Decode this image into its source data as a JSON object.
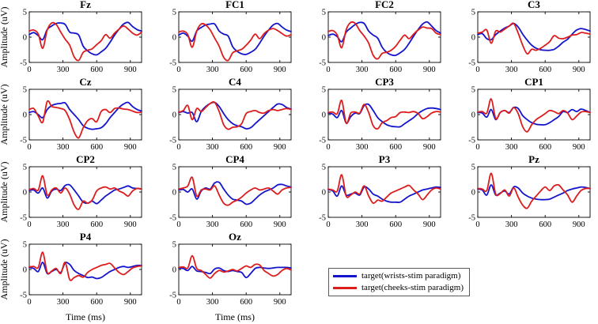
{
  "legend": {
    "items": [
      {
        "label": "target(wrists-stim paradigm)",
        "color": "#1414cc"
      },
      {
        "label": "target(cheeks-stim paradigm)",
        "color": "#dd1c1c"
      }
    ]
  },
  "chart_data": {
    "type": "line",
    "title": "",
    "xlabel": "Time (ms)",
    "ylabel": "Amplitude (uV)",
    "xlim": [
      0,
      1000
    ],
    "ylim": [
      -5,
      5
    ],
    "xticks": [
      0,
      300,
      600,
      900
    ],
    "yticks": [
      5,
      0,
      -5
    ],
    "grid": false,
    "legend_position": "bottom-right",
    "x": [
      0,
      40,
      80,
      120,
      160,
      200,
      240,
      280,
      320,
      360,
      400,
      440,
      480,
      520,
      560,
      600,
      640,
      680,
      720,
      760,
      800,
      840,
      880,
      920,
      960,
      1000
    ],
    "series_meta": [
      {
        "name": "target(wrists-stim paradigm)",
        "color": "#1414cc"
      },
      {
        "name": "target(cheeks-stim paradigm)",
        "color": "#dd1c1c"
      }
    ],
    "charts": [
      {
        "title": "Fz",
        "series": [
          [
            0.5,
            0.9,
            0.3,
            -0.5,
            1.5,
            2.2,
            2.7,
            2.8,
            2.5,
            1.0,
            0.8,
            0.4,
            -1.8,
            -2.7,
            -3.3,
            -3.5,
            -2.9,
            -2.2,
            -1.0,
            0.4,
            1.6,
            2.6,
            2.9,
            2.1,
            1.5,
            1.2
          ],
          [
            1.2,
            1.4,
            0.6,
            -2.2,
            1.4,
            2.8,
            2.5,
            1.0,
            -0.4,
            -1.6,
            -3.9,
            -4.6,
            -3.0,
            -2.6,
            -2.3,
            -1.5,
            -0.7,
            0.5,
            -0.2,
            0.8,
            1.6,
            2.2,
            1.6,
            0.8,
            0.4,
            1.0
          ]
        ]
      },
      {
        "title": "FC1",
        "series": [
          [
            0.4,
            0.8,
            0.2,
            -0.8,
            1.2,
            1.9,
            2.4,
            2.6,
            2.6,
            1.2,
            0.6,
            0.2,
            -1.9,
            -2.8,
            -3.3,
            -3.4,
            -3.0,
            -2.4,
            -1.2,
            0.2,
            1.4,
            2.4,
            2.7,
            2.0,
            1.4,
            1.1
          ],
          [
            1.0,
            1.2,
            0.5,
            -2.0,
            1.2,
            2.6,
            2.4,
            1.4,
            -0.2,
            -1.8,
            -4.0,
            -4.6,
            -3.1,
            -2.7,
            -2.4,
            -1.6,
            -0.6,
            0.6,
            -0.3,
            0.7,
            1.4,
            1.7,
            1.3,
            0.7,
            0.2,
            0.5
          ]
        ]
      },
      {
        "title": "FC2",
        "series": [
          [
            0.3,
            0.6,
            0.1,
            -0.9,
            1.0,
            1.8,
            2.5,
            2.9,
            2.7,
            1.2,
            0.4,
            -0.2,
            -2.0,
            -3.0,
            -3.5,
            -3.6,
            -3.1,
            -2.4,
            -1.2,
            0.2,
            1.5,
            2.6,
            3.0,
            2.2,
            1.3,
            0.8
          ],
          [
            1.1,
            1.3,
            0.4,
            -2.1,
            1.5,
            2.9,
            2.7,
            1.3,
            0.2,
            -1.2,
            -3.6,
            -4.3,
            -3.2,
            -3.0,
            -2.6,
            -1.8,
            -0.6,
            0.4,
            -0.3,
            0.6,
            1.4,
            2.0,
            1.8,
            1.7,
            0.8,
            0.5
          ]
        ]
      },
      {
        "title": "C3",
        "series": [
          [
            0.5,
            0.7,
            -0.3,
            -0.5,
            0.5,
            1.2,
            1.8,
            2.2,
            2.7,
            2.0,
            0.6,
            -0.6,
            -1.6,
            -2.2,
            -2.5,
            -2.6,
            -2.6,
            -2.4,
            -1.8,
            -1.0,
            -0.4,
            0.6,
            1.4,
            1.7,
            1.5,
            1.2
          ],
          [
            0.8,
            1.0,
            1.4,
            -1.2,
            1.2,
            1.0,
            1.6,
            2.2,
            2.7,
            0.8,
            -1.6,
            -3.3,
            -2.4,
            -2.6,
            -2.2,
            -1.6,
            -0.9,
            0.3,
            -0.2,
            -0.3,
            0.0,
            0.4,
            0.5,
            0.9,
            0.8,
            0.6
          ]
        ]
      },
      {
        "title": "Cz",
        "series": [
          [
            0.4,
            0.6,
            0.0,
            -0.6,
            1.0,
            1.8,
            2.1,
            2.2,
            2.3,
            1.0,
            0.0,
            -1.0,
            -2.2,
            -2.7,
            -2.9,
            -2.8,
            -2.6,
            -1.8,
            -0.6,
            0.4,
            1.4,
            2.1,
            2.4,
            1.6,
            1.0,
            0.7
          ],
          [
            1.0,
            1.2,
            -0.3,
            -1.5,
            2.6,
            1.6,
            1.4,
            1.2,
            0.8,
            -1.0,
            -3.5,
            -4.6,
            -2.6,
            -1.2,
            -0.8,
            -1.4,
            0.6,
            1.0,
            0.4,
            1.2,
            1.3,
            1.1,
            1.0,
            0.7,
            0.4,
            0.5
          ]
        ]
      },
      {
        "title": "C4",
        "series": [
          [
            0.4,
            0.6,
            0.3,
            0.4,
            -1.4,
            0.6,
            1.6,
            2.2,
            2.4,
            1.6,
            0.2,
            -1.0,
            -1.8,
            -2.2,
            -2.4,
            -2.8,
            -2.6,
            -1.8,
            -1.0,
            -0.2,
            0.6,
            1.4,
            2.1,
            2.0,
            1.4,
            1.1
          ],
          [
            0.5,
            0.8,
            1.8,
            -1.0,
            1.2,
            0.6,
            1.4,
            2.2,
            2.4,
            0.6,
            -2.0,
            -2.9,
            -2.5,
            -2.4,
            -1.8,
            0.2,
            0.6,
            0.8,
            0.4,
            0.3,
            0.8,
            1.0,
            0.8,
            1.0,
            1.2,
            1.0
          ]
        ]
      },
      {
        "title": "CP3",
        "series": [
          [
            0.3,
            0.1,
            -0.6,
            0.8,
            -1.7,
            -0.4,
            0.3,
            0.2,
            1.8,
            2.0,
            0.8,
            -0.6,
            -1.4,
            -2.0,
            -2.3,
            -2.4,
            -2.4,
            -1.8,
            -1.2,
            -0.6,
            0.2,
            0.8,
            1.2,
            1.3,
            1.2,
            1.0
          ],
          [
            0.4,
            0.5,
            0.2,
            2.8,
            -1.7,
            0.3,
            0.5,
            0.3,
            2.0,
            0.4,
            -2.2,
            -2.8,
            -1.6,
            -1.2,
            -0.6,
            -0.4,
            0.4,
            0.5,
            0.4,
            0.6,
            0.2,
            -0.8,
            -0.4,
            0.3,
            0.6,
            0.5
          ]
        ]
      },
      {
        "title": "CP1",
        "series": [
          [
            0.4,
            0.3,
            -0.5,
            1.0,
            -1.0,
            0.4,
            0.8,
            0.4,
            1.4,
            1.2,
            -0.2,
            -1.0,
            -1.6,
            -1.9,
            -2.0,
            -2.0,
            -1.6,
            -1.0,
            -0.4,
            0.6,
            0.4,
            1.0,
            0.6,
            1.1,
            0.8,
            0.4
          ],
          [
            0.5,
            0.6,
            0.3,
            3.1,
            -0.8,
            0.4,
            0.8,
            0.3,
            1.4,
            0.2,
            -2.4,
            -3.4,
            -2.0,
            -1.0,
            -0.4,
            0.2,
            0.8,
            0.6,
            0.2,
            0.8,
            0.3,
            -1.0,
            -0.3,
            0.5,
            0.6,
            0.4
          ]
        ]
      },
      {
        "title": "CP2",
        "series": [
          [
            0.3,
            0.4,
            -0.2,
            0.8,
            -1.2,
            0.2,
            0.6,
            0.3,
            1.3,
            1.4,
            0.4,
            -0.8,
            -2.0,
            -2.2,
            -1.8,
            -2.3,
            -1.6,
            -0.8,
            -0.2,
            0.4,
            0.6,
            0.9,
            1.2,
            0.8,
            0.7,
            0.6
          ],
          [
            0.5,
            0.7,
            0.4,
            3.2,
            -0.6,
            0.4,
            0.8,
            -0.2,
            0.8,
            -0.4,
            -2.6,
            -3.4,
            -1.8,
            -2.2,
            -1.6,
            0.2,
            0.8,
            1.0,
            0.6,
            0.8,
            0.2,
            -0.2,
            -0.8,
            0.2,
            0.7,
            0.6
          ]
        ]
      },
      {
        "title": "CP4",
        "series": [
          [
            0.4,
            0.5,
            0.0,
            0.6,
            -1.4,
            0.2,
            0.8,
            0.6,
            1.8,
            1.9,
            0.6,
            -0.6,
            -1.4,
            -1.6,
            -1.8,
            -2.4,
            -2.2,
            -1.4,
            -0.6,
            0.0,
            0.4,
            0.8,
            1.4,
            1.5,
            1.2,
            1.0
          ],
          [
            0.6,
            0.8,
            1.2,
            2.9,
            -0.8,
            0.4,
            0.6,
            0.4,
            1.2,
            -0.6,
            -2.2,
            -2.6,
            -2.0,
            -1.6,
            -1.0,
            -0.2,
            0.4,
            0.8,
            0.4,
            0.6,
            0.8,
            0.2,
            -0.4,
            0.4,
            0.8,
            0.9
          ]
        ]
      },
      {
        "title": "P3",
        "series": [
          [
            0.5,
            0.2,
            -0.8,
            1.2,
            -0.6,
            -0.4,
            -0.2,
            -0.6,
            1.0,
            0.6,
            -0.4,
            -0.8,
            -1.4,
            -1.8,
            -2.0,
            -2.0,
            -2.0,
            -1.4,
            -0.8,
            -0.4,
            0.0,
            0.4,
            0.6,
            0.8,
            1.0,
            0.9
          ],
          [
            0.6,
            0.4,
            0.2,
            3.4,
            -0.8,
            -0.6,
            0.0,
            -0.4,
            1.2,
            -0.8,
            -2.2,
            -1.6,
            -1.8,
            -1.0,
            -0.2,
            0.2,
            0.6,
            1.0,
            1.3,
            0.4,
            -0.4,
            -1.5,
            -0.6,
            0.4,
            0.8,
            0.6
          ]
        ]
      },
      {
        "title": "Pz",
        "series": [
          [
            0.6,
            0.4,
            -0.6,
            1.4,
            -0.6,
            -0.2,
            0.2,
            -0.4,
            1.0,
            0.8,
            -0.2,
            -0.8,
            -1.2,
            -1.4,
            -1.5,
            -1.5,
            -1.4,
            -1.0,
            -0.6,
            -0.2,
            0.3,
            0.6,
            0.8,
            1.0,
            0.9,
            0.7
          ],
          [
            0.7,
            0.6,
            0.3,
            3.7,
            -0.4,
            -0.3,
            0.4,
            -0.8,
            0.8,
            -1.0,
            -2.6,
            -3.2,
            -1.8,
            -0.8,
            0.2,
            1.0,
            0.3,
            1.2,
            1.4,
            0.4,
            -0.6,
            -2.0,
            -0.8,
            0.3,
            0.7,
            0.7
          ]
        ]
      },
      {
        "title": "P4",
        "series": [
          [
            0.4,
            0.2,
            -0.4,
            1.4,
            -0.8,
            -0.4,
            0.0,
            -0.6,
            1.3,
            1.0,
            -0.2,
            -0.8,
            -1.2,
            -1.6,
            -1.5,
            -1.8,
            -1.6,
            -1.0,
            -0.4,
            0.0,
            0.4,
            0.6,
            0.4,
            0.6,
            0.8,
            0.8
          ],
          [
            0.5,
            0.6,
            0.4,
            3.4,
            -0.6,
            -0.3,
            0.2,
            -0.8,
            1.4,
            -2.0,
            -1.6,
            -1.2,
            -1.5,
            -0.6,
            0.0,
            0.4,
            0.8,
            1.0,
            1.2,
            0.3,
            -0.6,
            -1.0,
            -0.4,
            0.3,
            0.6,
            0.7
          ]
        ]
      },
      {
        "title": "Oz",
        "series": [
          [
            0.3,
            0.2,
            -0.2,
            0.6,
            -0.3,
            -0.4,
            -0.6,
            -0.8,
            0.1,
            0.3,
            -0.2,
            -0.4,
            -0.2,
            -0.4,
            -0.6,
            -1.6,
            -0.8,
            0.2,
            0.4,
            0.3,
            0.2,
            0.3,
            0.4,
            0.4,
            0.4,
            0.3
          ],
          [
            0.4,
            0.5,
            0.3,
            2.7,
            0.2,
            -0.2,
            -1.0,
            -1.7,
            -0.8,
            -0.2,
            -0.5,
            -0.3,
            0.0,
            -0.3,
            0.2,
            0.7,
            0.4,
            1.0,
            0.9,
            -0.2,
            -0.8,
            -1.3,
            -1.0,
            -0.2,
            0.2,
            -0.1
          ]
        ]
      }
    ]
  }
}
